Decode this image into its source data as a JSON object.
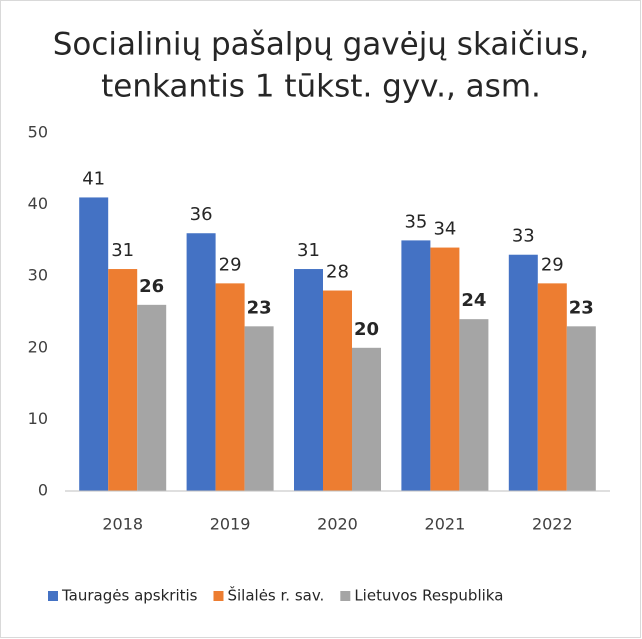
{
  "chart_data": {
    "type": "bar",
    "title": [
      "Socialinių pašalpų gavėjų skaičius,",
      "tenkantis 1 tūkst. gyv., asm."
    ],
    "categories": [
      "2018",
      "2019",
      "2020",
      "2021",
      "2022"
    ],
    "series": [
      {
        "name": "Tauragės apskritis",
        "color": "#4472c4",
        "values": [
          41,
          36,
          31,
          35,
          33
        ],
        "label_bold": false
      },
      {
        "name": "Šilalės r. sav.",
        "color": "#ed7d31",
        "values": [
          31,
          29,
          28,
          34,
          29
        ],
        "label_bold": false
      },
      {
        "name": "Lietuvos Respublika",
        "color": "#a5a5a5",
        "values": [
          26,
          23,
          20,
          24,
          23
        ],
        "label_bold": true
      }
    ],
    "ylim": [
      0,
      50
    ],
    "yticks": [
      0,
      10,
      20,
      30,
      40,
      50
    ],
    "grid": false,
    "legend": "bottom"
  }
}
